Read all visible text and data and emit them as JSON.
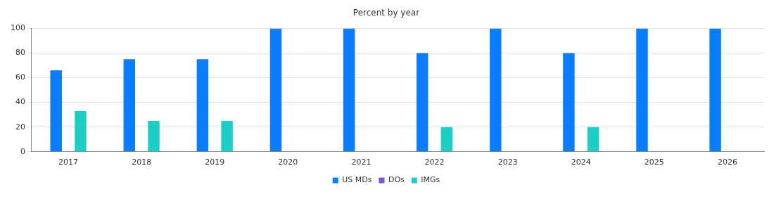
{
  "chart_data": {
    "type": "bar",
    "title": "Percent by year",
    "categories": [
      "2017",
      "2018",
      "2019",
      "2020",
      "2021",
      "2022",
      "2023",
      "2024",
      "2025",
      "2026"
    ],
    "series": [
      {
        "name": "US MDs",
        "color": "#0a7cff",
        "values": [
          66,
          75,
          75,
          100,
          100,
          80,
          100,
          80,
          100,
          100
        ]
      },
      {
        "name": "DOs",
        "color": "#7b4fe0",
        "values": [
          0,
          0,
          0,
          0,
          0,
          0,
          0,
          0,
          0,
          0
        ]
      },
      {
        "name": "IMGs",
        "color": "#1ccfc4",
        "values": [
          33,
          25,
          25,
          0,
          0,
          20,
          0,
          20,
          0,
          0
        ]
      }
    ],
    "ylim": [
      0,
      100
    ],
    "yticks": [
      0,
      20,
      40,
      60,
      80,
      100
    ],
    "grid": "y",
    "legend": "bottom"
  }
}
